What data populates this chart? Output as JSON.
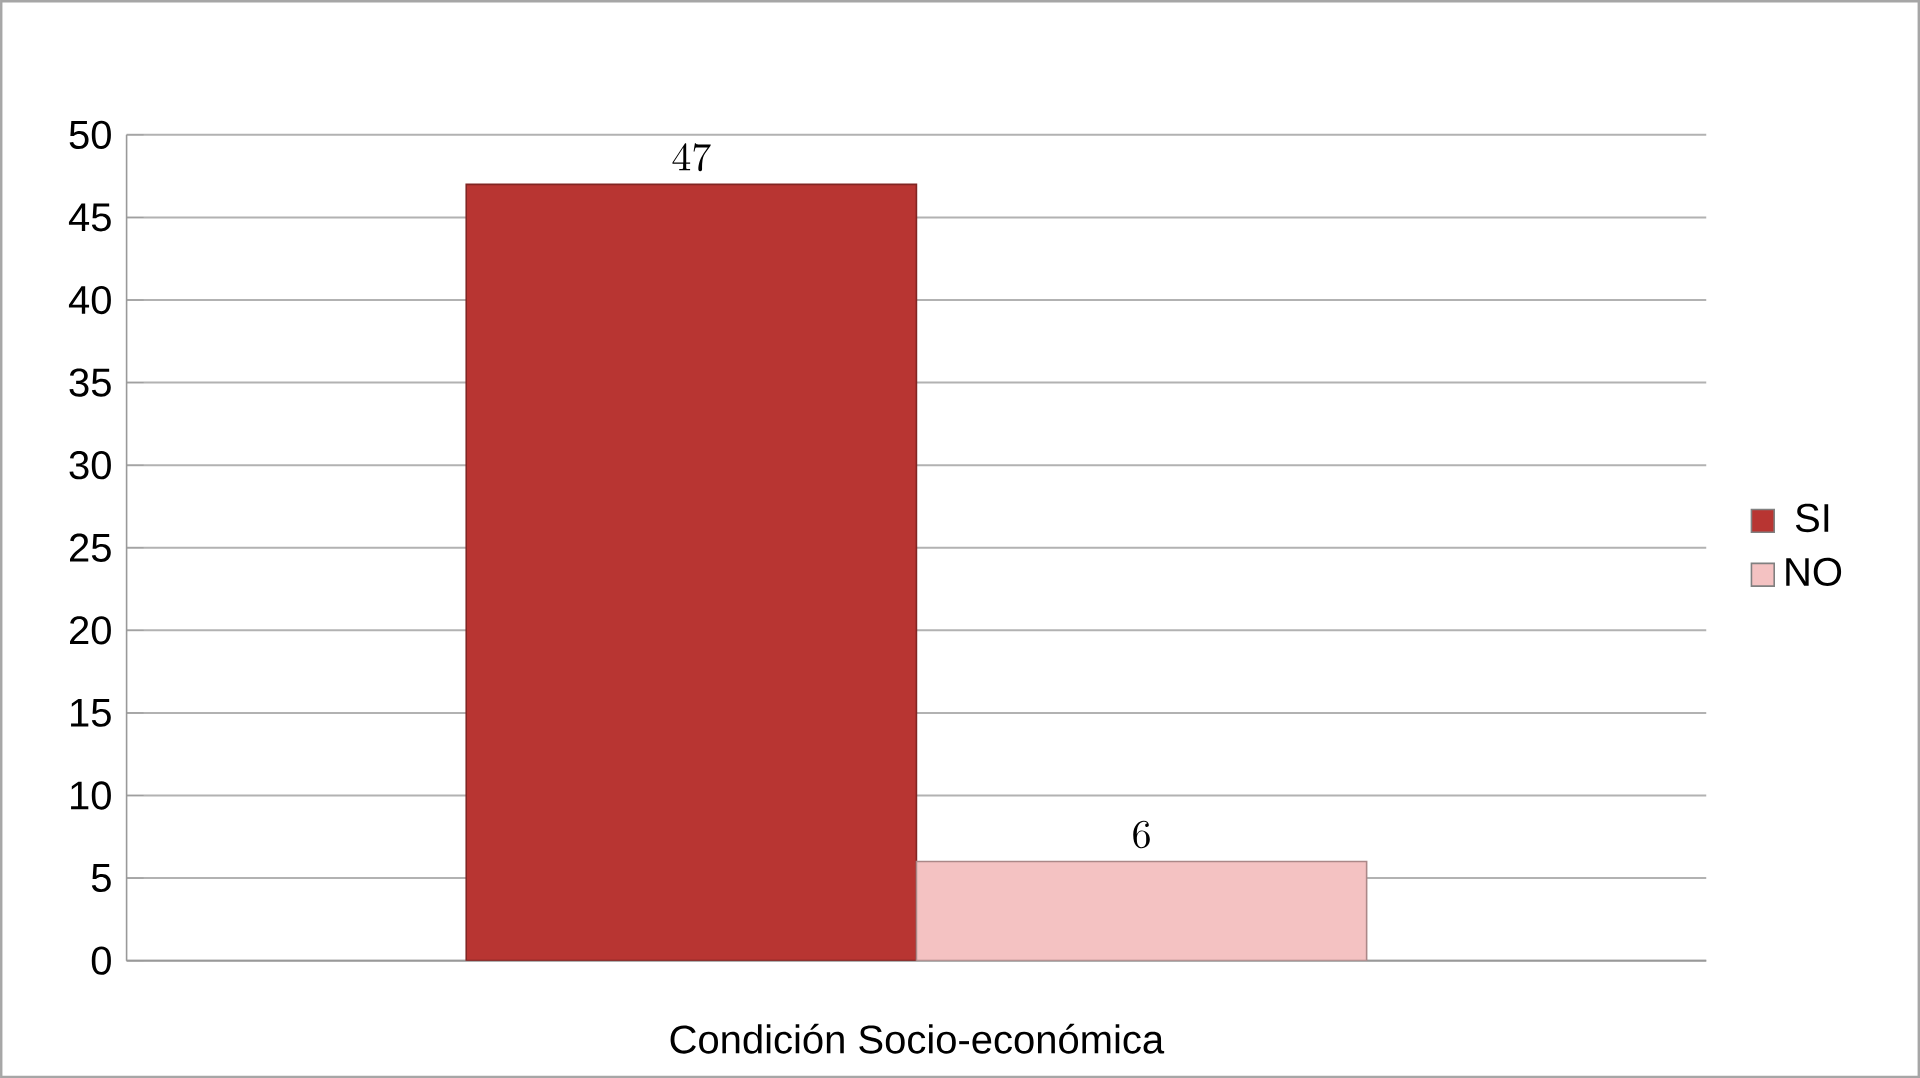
{
  "chart_data": {
    "type": "bar",
    "categories": [
      "Condición Socio-económica"
    ],
    "series": [
      {
        "name": "SI",
        "color": "#b83532",
        "values": [
          47
        ]
      },
      {
        "name": "NO",
        "color": "#f4c2c2",
        "values": [
          6
        ]
      }
    ],
    "ylim": [
      0,
      50
    ],
    "yticks": [
      0,
      5,
      10,
      15,
      20,
      25,
      30,
      35,
      40,
      45,
      50
    ],
    "grid": "y",
    "legend": "right",
    "data_labels": true
  }
}
